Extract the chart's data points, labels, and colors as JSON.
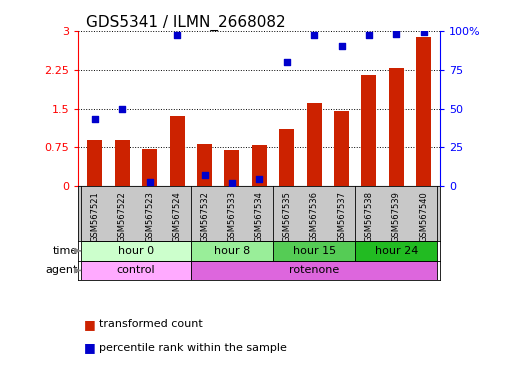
{
  "title": "GDS5341 / ILMN_2668082",
  "samples": [
    "GSM567521",
    "GSM567522",
    "GSM567523",
    "GSM567524",
    "GSM567532",
    "GSM567533",
    "GSM567534",
    "GSM567535",
    "GSM567536",
    "GSM567537",
    "GSM567538",
    "GSM567539",
    "GSM567540"
  ],
  "red_values": [
    0.9,
    0.9,
    0.72,
    1.35,
    0.82,
    0.7,
    0.8,
    1.1,
    1.6,
    1.45,
    2.15,
    2.28,
    2.87
  ],
  "blue_values": [
    43,
    50,
    3,
    97,
    7,
    2,
    5,
    80,
    97,
    90,
    97,
    98,
    99
  ],
  "time_groups": [
    {
      "label": "hour 0",
      "start": 0,
      "end": 4,
      "color": "#ccffcc"
    },
    {
      "label": "hour 8",
      "start": 4,
      "end": 7,
      "color": "#99ee99"
    },
    {
      "label": "hour 15",
      "start": 7,
      "end": 10,
      "color": "#55cc55"
    },
    {
      "label": "hour 24",
      "start": 10,
      "end": 13,
      "color": "#22bb22"
    }
  ],
  "agent_groups": [
    {
      "label": "control",
      "start": 0,
      "end": 4,
      "color": "#ffaaff"
    },
    {
      "label": "rotenone",
      "start": 4,
      "end": 13,
      "color": "#dd66dd"
    }
  ],
  "group_dividers": [
    0,
    4,
    7,
    10,
    13
  ],
  "ylim_left": [
    0,
    3
  ],
  "ylim_right": [
    0,
    100
  ],
  "yticks_left": [
    0,
    0.75,
    1.5,
    2.25,
    3
  ],
  "yticks_right": [
    0,
    25,
    50,
    75,
    100
  ],
  "bar_color": "#cc2200",
  "dot_color": "#0000cc",
  "bg_color": "#ffffff",
  "gray_color": "#c8c8c8",
  "title_fontsize": 11,
  "tick_fontsize": 8,
  "sample_fontsize": 6,
  "row_fontsize": 8,
  "legend_fontsize": 8
}
